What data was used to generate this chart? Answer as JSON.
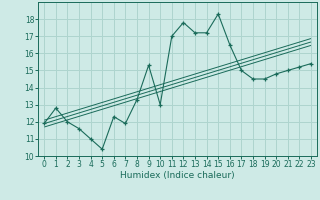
{
  "xlabel": "Humidex (Indice chaleur)",
  "bg_color": "#ceeae6",
  "line_color": "#1a6b5a",
  "grid_color": "#aed4ce",
  "x_data": [
    0,
    1,
    2,
    3,
    4,
    5,
    6,
    7,
    8,
    9,
    10,
    11,
    12,
    13,
    14,
    15,
    16,
    17,
    18,
    19,
    20,
    21,
    22,
    23
  ],
  "y_data": [
    11.9,
    12.8,
    12.0,
    11.6,
    11.0,
    10.4,
    12.3,
    11.9,
    13.3,
    15.3,
    13.0,
    17.0,
    17.8,
    17.2,
    17.2,
    18.3,
    16.5,
    15.0,
    14.5,
    14.5,
    14.8,
    15.0,
    15.2,
    15.4
  ],
  "ylim": [
    10,
    19
  ],
  "xlim": [
    -0.5,
    23.5
  ],
  "yticks": [
    10,
    11,
    12,
    13,
    14,
    15,
    16,
    17,
    18
  ],
  "xticks": [
    0,
    1,
    2,
    3,
    4,
    5,
    6,
    7,
    8,
    9,
    10,
    11,
    12,
    13,
    14,
    15,
    16,
    17,
    18,
    19,
    20,
    21,
    22,
    23
  ],
  "reg_offsets": [
    -0.25,
    -0.05,
    0.15
  ]
}
